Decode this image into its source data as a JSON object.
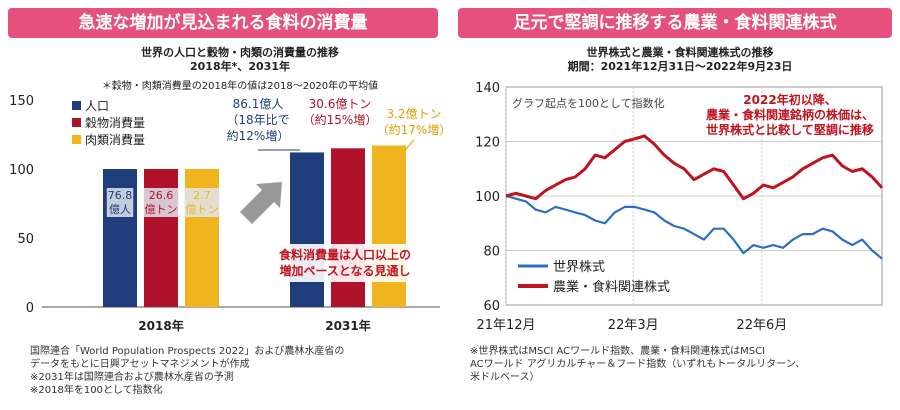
{
  "left_panel": {
    "banner": "急速な増加が見込まれる食料の消費量",
    "title_line1": "世界の人口と穀物・肉類の消費量の推移",
    "title_line2": "2018年*、2031年",
    "footnote_star": "＊穀物・肉類消費量の2018年の値は2018～2020年の平均値",
    "callout_pop": [
      "86.1億人",
      "（18年比で",
      "約12%増）"
    ],
    "callout_grain": [
      "30.6億トン",
      "（約15%増）"
    ],
    "callout_meat": [
      "3.2億トン",
      "（約17%増）"
    ],
    "callout_note": [
      "食料消費量は人口以上の",
      "増加ペースとなる見通し"
    ],
    "notes": [
      "国際連合「World Population Prospects 2022」および農林水産省の",
      "データをもとに日興アセットマネジメントが作成",
      "※2031年は国際連合および農林水産省の予測",
      "※2018年を100として指数化"
    ]
  },
  "right_panel": {
    "banner": "足元で堅調に推移する農業・食料関連株式",
    "title_line1": "世界株式と農業・食料関連株式の推移",
    "title_line2": "期間：2021年12月31日～2022年9月23日",
    "index_note": "グラフ起点を100として指数化",
    "annotation": [
      "2022年初以降、",
      "農業・食料関連銘柄の株価は、",
      "世界株式と比較して堅調に推移"
    ],
    "notes": [
      "※世界株式はMSCI ACワールド指数、農業・食料関連株式はMSCI",
      "ACワールド アグリカルチャー＆フード指数（いずれもトータルリターン、",
      "米ドルベース）"
    ]
  },
  "chart_data": [
    {
      "type": "bar",
      "categories": [
        "2018年",
        "2031年"
      ],
      "series": [
        {
          "name": "人口",
          "values": [
            100,
            112
          ],
          "labels": [
            "76.8\n億人",
            ""
          ],
          "color": "#1f3d7a"
        },
        {
          "name": "穀物消費量",
          "values": [
            100,
            115
          ],
          "labels": [
            "26.6\n億トン",
            ""
          ],
          "color": "#b0112b"
        },
        {
          "name": "肉類消費量",
          "values": [
            100,
            117
          ],
          "labels": [
            "2.7\n億トン",
            ""
          ],
          "color": "#f0b51e"
        }
      ],
      "yticks": [
        0,
        50,
        100,
        150
      ],
      "ylim": [
        0,
        150
      ],
      "legend": "top-left"
    },
    {
      "type": "line",
      "x_ticks": [
        "21年12月",
        "22年3月",
        "22年6月"
      ],
      "x_tick_dates": [
        "2021-12-31",
        "2022-03-31",
        "2022-06-30"
      ],
      "x_range": [
        "2021-12-31",
        "2022-09-23"
      ],
      "yticks": [
        60,
        80,
        100,
        120,
        140
      ],
      "ylim": [
        60,
        140
      ],
      "legend": "bottom-left",
      "series": [
        {
          "name": "世界株式",
          "color": "#2b6fc4",
          "points": [
            [
              "2021-12-31",
              100
            ],
            [
              "2022-01-07",
              99
            ],
            [
              "2022-01-14",
              98
            ],
            [
              "2022-01-21",
              95
            ],
            [
              "2022-01-28",
              94
            ],
            [
              "2022-02-04",
              96
            ],
            [
              "2022-02-11",
              95
            ],
            [
              "2022-02-18",
              94
            ],
            [
              "2022-02-25",
              93
            ],
            [
              "2022-03-04",
              91
            ],
            [
              "2022-03-11",
              90
            ],
            [
              "2022-03-18",
              94
            ],
            [
              "2022-03-25",
              96
            ],
            [
              "2022-04-01",
              96
            ],
            [
              "2022-04-08",
              95
            ],
            [
              "2022-04-15",
              94
            ],
            [
              "2022-04-22",
              91
            ],
            [
              "2022-04-29",
              89
            ],
            [
              "2022-05-06",
              88
            ],
            [
              "2022-05-13",
              86
            ],
            [
              "2022-05-20",
              84
            ],
            [
              "2022-05-27",
              88
            ],
            [
              "2022-06-03",
              88
            ],
            [
              "2022-06-10",
              84
            ],
            [
              "2022-06-17",
              79
            ],
            [
              "2022-06-24",
              82
            ],
            [
              "2022-07-01",
              81
            ],
            [
              "2022-07-08",
              82
            ],
            [
              "2022-07-15",
              81
            ],
            [
              "2022-07-22",
              84
            ],
            [
              "2022-07-29",
              86
            ],
            [
              "2022-08-05",
              86
            ],
            [
              "2022-08-12",
              88
            ],
            [
              "2022-08-19",
              87
            ],
            [
              "2022-08-26",
              84
            ],
            [
              "2022-09-02",
              82
            ],
            [
              "2022-09-09",
              84
            ],
            [
              "2022-09-16",
              80
            ],
            [
              "2022-09-23",
              77
            ]
          ]
        },
        {
          "name": "農業・食料関連株式",
          "color": "#c0121f",
          "points": [
            [
              "2021-12-31",
              100
            ],
            [
              "2022-01-07",
              101
            ],
            [
              "2022-01-14",
              100
            ],
            [
              "2022-01-21",
              99
            ],
            [
              "2022-01-28",
              102
            ],
            [
              "2022-02-04",
              104
            ],
            [
              "2022-02-11",
              106
            ],
            [
              "2022-02-18",
              107
            ],
            [
              "2022-02-25",
              110
            ],
            [
              "2022-03-04",
              115
            ],
            [
              "2022-03-11",
              114
            ],
            [
              "2022-03-18",
              117
            ],
            [
              "2022-03-25",
              120
            ],
            [
              "2022-04-01",
              121
            ],
            [
              "2022-04-08",
              122
            ],
            [
              "2022-04-15",
              119
            ],
            [
              "2022-04-22",
              115
            ],
            [
              "2022-04-29",
              112
            ],
            [
              "2022-05-06",
              110
            ],
            [
              "2022-05-13",
              106
            ],
            [
              "2022-05-20",
              108
            ],
            [
              "2022-05-27",
              110
            ],
            [
              "2022-06-03",
              109
            ],
            [
              "2022-06-10",
              104
            ],
            [
              "2022-06-17",
              99
            ],
            [
              "2022-06-24",
              101
            ],
            [
              "2022-07-01",
              104
            ],
            [
              "2022-07-08",
              103
            ],
            [
              "2022-07-15",
              105
            ],
            [
              "2022-07-22",
              107
            ],
            [
              "2022-07-29",
              110
            ],
            [
              "2022-08-05",
              112
            ],
            [
              "2022-08-12",
              114
            ],
            [
              "2022-08-19",
              115
            ],
            [
              "2022-08-26",
              111
            ],
            [
              "2022-09-02",
              109
            ],
            [
              "2022-09-09",
              110
            ],
            [
              "2022-09-16",
              107
            ],
            [
              "2022-09-23",
              103
            ]
          ]
        }
      ]
    }
  ]
}
